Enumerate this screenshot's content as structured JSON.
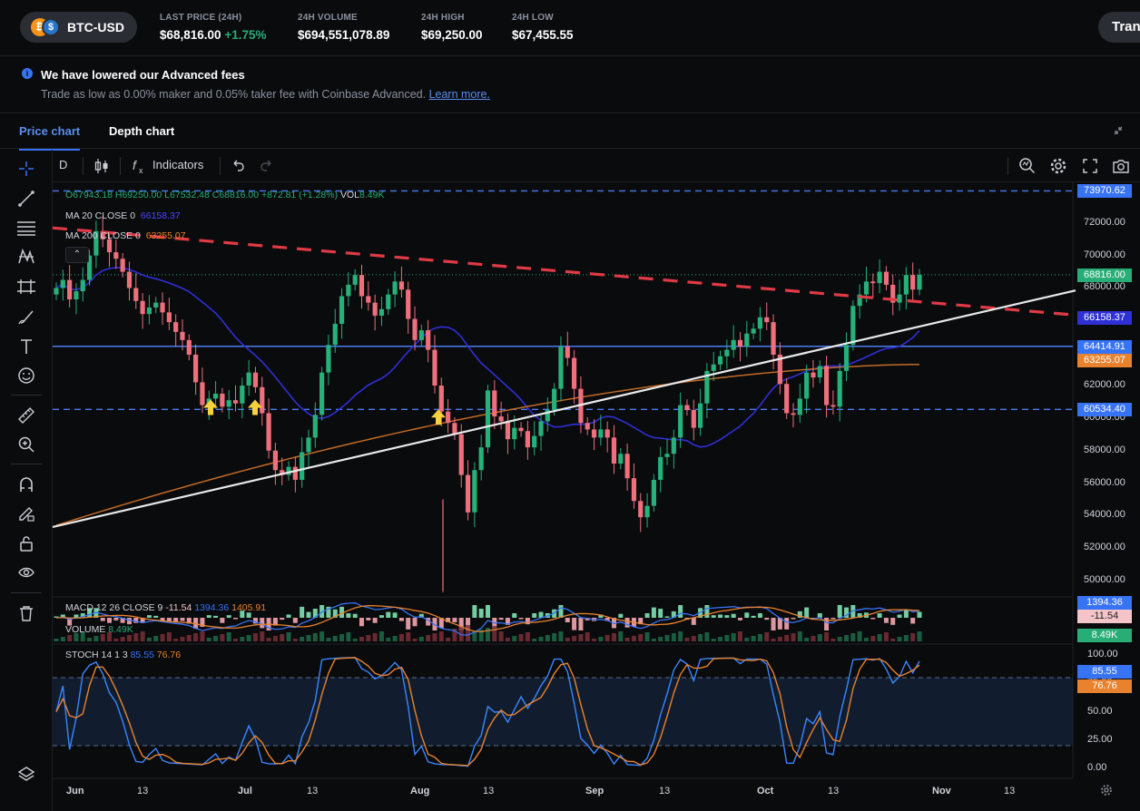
{
  "header": {
    "pair": "BTC-USD",
    "coin_a_glyph": "₿",
    "coin_b_glyph": "$",
    "stats": [
      {
        "label": "LAST PRICE (24H)",
        "value": "$68,816.00",
        "change": "+1.75%"
      },
      {
        "label": "24H VOLUME",
        "value": "$694,551,078.89"
      },
      {
        "label": "24H HIGH",
        "value": "$69,250.00"
      },
      {
        "label": "24H LOW",
        "value": "$67,455.55"
      }
    ],
    "trade_button": "Tran"
  },
  "notice": {
    "title": "We have lowered our Advanced fees",
    "body": "Trade as low as 0.00% maker and 0.05% taker fee with Coinbase Advanced.",
    "link": "Learn more."
  },
  "tabs": [
    {
      "label": "Price chart",
      "active": true
    },
    {
      "label": "Depth chart",
      "active": false
    }
  ],
  "toolbar": {
    "interval": "D",
    "indicators_label": "Indicators"
  },
  "left_tools": [
    "crosshair-icon",
    "trend-line-icon",
    "fib-lines-icon",
    "pattern-icon",
    "prediction-icon",
    "brush-icon",
    "text-icon",
    "emoji-icon",
    "ruler-icon",
    "zoom-in-icon",
    "magnet-icon",
    "lock-drawing-icon",
    "unlock-icon",
    "eye-icon",
    "trash-icon",
    "layers-icon"
  ],
  "legend": {
    "ohlc": "O67943.18 H69250.00 L67532.48 C68816.00 +872.81 (+1.28%)",
    "vol_label": "VOL",
    "vol_value": "8.49K",
    "ma20_label": "MA 20 CLOSE 0",
    "ma20_value": "66158.37",
    "ma200_label": "MA 200 CLOSE 0",
    "ma200_value": "63255.07",
    "macd_label": "MACD 12 26 CLOSE 9",
    "macd_hist": "-11.54",
    "macd_line": "1394.36",
    "macd_signal": "1405.91",
    "volume_label": "VOLUME",
    "volume_value": "8.49K",
    "stoch_label": "STOCH 14 1 3",
    "stoch_k": "85.55",
    "stoch_d": "76.76"
  },
  "price_labels": [
    {
      "text": "73970.62",
      "color": "#3773f5"
    },
    {
      "text": "68816.00",
      "color": "#27ad75"
    },
    {
      "text": "66158.37",
      "color": "#2f2fd6"
    },
    {
      "text": "64414.91",
      "color": "#3773f5"
    },
    {
      "text": "63255.07",
      "color": "#e8822e"
    },
    {
      "text": "60534.40",
      "color": "#3773f5"
    }
  ],
  "sub_labels": [
    {
      "text": "1394.36",
      "color": "#3773f5"
    },
    {
      "text": "-11.54",
      "color": "#f4c4c9"
    },
    {
      "text": "8.49K",
      "color": "#27ad75"
    },
    {
      "text": "85.55",
      "color": "#3773f5"
    },
    {
      "text": "76.76",
      "color": "#e8822e"
    }
  ],
  "y_axis_ticks": [
    "72000.00",
    "70000.00",
    "68000.00",
    "66000.00",
    "64000.00",
    "62000.00",
    "60000.00",
    "58000.00",
    "56000.00",
    "54000.00",
    "52000.00",
    "50000.00"
  ],
  "stoch_ticks": [
    "100.00",
    "75.00",
    "50.00",
    "25.00",
    "0.00"
  ],
  "x_axis_ticks": [
    "Jun",
    "13",
    "Jul",
    "13",
    "Aug",
    "13",
    "Sep",
    "13",
    "Oct",
    "13",
    "Nov",
    "13"
  ],
  "chart_data": {
    "type": "candlestick",
    "symbol": "BTC-USD",
    "interval": "D",
    "ylim": [
      49000,
      74500
    ],
    "horizontal_levels": [
      73970.62,
      64414.91,
      60534.4
    ],
    "last_close": 68816.0,
    "ma20_last": 66158.37,
    "ma200_last": 63255.07,
    "approx_closes": [
      68000,
      68500,
      67300,
      67800,
      68500,
      70000,
      71500,
      71000,
      70200,
      69800,
      69000,
      68000,
      67200,
      66400,
      66800,
      67100,
      66500,
      65900,
      65300,
      64800,
      63900,
      62200,
      60800,
      61200,
      61500,
      60700,
      61100,
      60900,
      62000,
      62800,
      61900,
      60300,
      58000,
      56800,
      56500,
      57000,
      56200,
      57900,
      58800,
      60200,
      62800,
      64500,
      65800,
      67500,
      68200,
      68800,
      67500,
      67100,
      66300,
      66700,
      67600,
      68400,
      67900,
      66100,
      64800,
      65400,
      64200,
      62000,
      60400,
      59700,
      59000,
      56500,
      54200,
      56800,
      58200,
      61700,
      60100,
      59800,
      58700,
      59400,
      59200,
      58200,
      58900,
      59800,
      60500,
      61800,
      64400,
      63700,
      61800,
      59700,
      59300,
      58800,
      59300,
      58800,
      57200,
      57800,
      56300,
      54900,
      53900,
      54600,
      56200,
      57600,
      57800,
      58800,
      60800,
      60500,
      59400,
      60900,
      62900,
      63300,
      63800,
      64200,
      64800,
      64400,
      65200,
      65500,
      66200,
      65900,
      63900,
      62100,
      60300,
      60200,
      61200,
      62800,
      62500,
      63200,
      60800,
      60700,
      62900,
      64500,
      66900,
      67600,
      68400,
      68300,
      69000,
      68200,
      67100,
      67600,
      68800,
      67900,
      68816
    ]
  }
}
